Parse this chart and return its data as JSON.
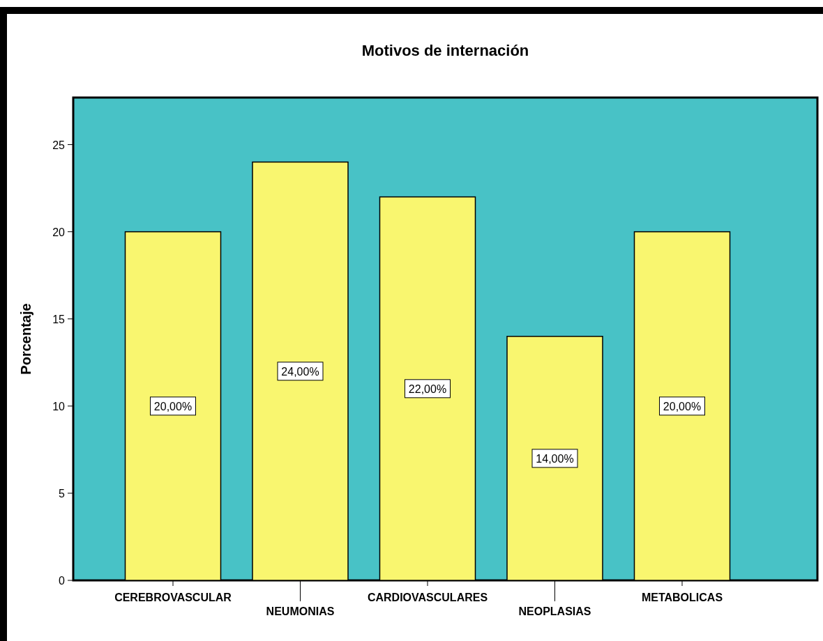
{
  "chart_data": {
    "type": "bar",
    "title": "Motivos de internación",
    "ylabel": "Porcentaje",
    "categories": [
      "CEREBROVASCULAR",
      "NEUMONIAS",
      "CARDIOVASCULARES",
      "NEOPLASIAS",
      "METABOLICAS"
    ],
    "values": [
      20,
      24,
      22,
      14,
      20
    ],
    "value_labels": [
      "20,00%",
      "24,00%",
      "22,00%",
      "14,00%",
      "20,00%"
    ],
    "color": "#f9f66f",
    "ylim": [
      0,
      27.7
    ],
    "yticks": [
      0,
      5,
      10,
      15,
      20,
      25
    ],
    "grid": false
  }
}
